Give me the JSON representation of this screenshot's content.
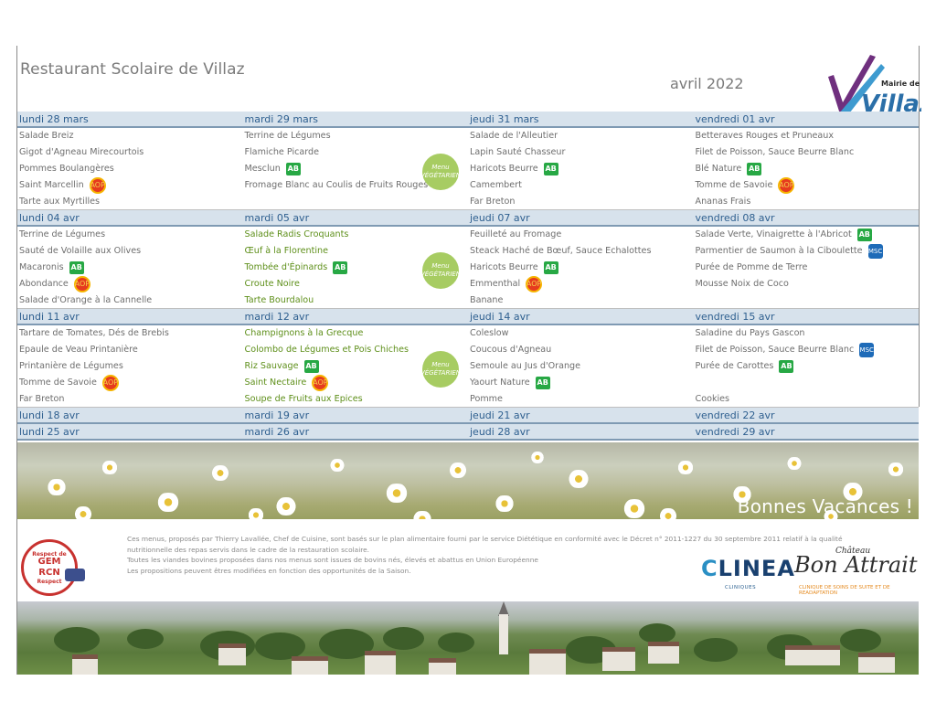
{
  "header": {
    "title": "Restaurant Scolaire de Villaz",
    "month": "avril 2022",
    "logo_text_1": "Mairie de",
    "logo_text_2": "Villaz"
  },
  "colors": {
    "accent": "#2e5f8f",
    "header_bg": "#d7e2ec",
    "veg_text": "#5e8f1a",
    "ab_green": "#27a844",
    "aop_red": "#e63b1f",
    "msc_blue": "#1e6bb8"
  },
  "badge_labels": {
    "ab": "AB",
    "aop": "AOP",
    "msc": "MSC"
  },
  "weeks": [
    {
      "days": [
        {
          "label": "lundi 28 mars",
          "dishes": [
            {
              "text": "Salade Breiz"
            },
            {
              "text": "Gigot d'Agneau Mirecourtois"
            },
            {
              "text": "Pommes Boulangères"
            },
            {
              "text": "Saint Marcellin",
              "badge": "aop"
            },
            {
              "text": "Tarte aux Myrtilles"
            }
          ]
        },
        {
          "label": "mardi 29 mars",
          "veg": true,
          "dishes": [
            {
              "text": "Terrine de Légumes"
            },
            {
              "text": "Flamiche Picarde"
            },
            {
              "text": "Mesclun",
              "badge": "ab"
            },
            {
              "text": "Fromage Blanc au Coulis de Fruits Rouges"
            },
            {
              "text": ""
            }
          ]
        },
        {
          "label": "jeudi 31 mars",
          "dishes": [
            {
              "text": "Salade de l'Alleutier"
            },
            {
              "text": "Lapin Sauté Chasseur"
            },
            {
              "text": " Haricots Beurre",
              "badge": "ab"
            },
            {
              "text": "Camembert"
            },
            {
              "text": "Far Breton"
            }
          ]
        },
        {
          "label": "vendredi 01 avr",
          "dishes": [
            {
              "text": "Betteraves Rouges et Pruneaux"
            },
            {
              "text": "Filet de Poisson, Sauce Beurre Blanc"
            },
            {
              "text": "Blé Nature",
              "badge": "ab"
            },
            {
              "text": "Tomme de Savoie",
              "badge": "aop"
            },
            {
              "text": "Ananas Frais"
            }
          ]
        }
      ]
    },
    {
      "days": [
        {
          "label": "lundi 04 avr",
          "dishes": [
            {
              "text": "Terrine de Légumes"
            },
            {
              "text": "Sauté de Volaille aux Olives"
            },
            {
              "text": "Macaronis",
              "badge": "ab"
            },
            {
              "text": "Abondance",
              "badge": "aop"
            },
            {
              "text": "Salade d'Orange à la Cannelle"
            }
          ]
        },
        {
          "label": "mardi 05 avr",
          "veg": true,
          "vegText": true,
          "dishes": [
            {
              "text": "Salade Radis Croquants"
            },
            {
              "text": "Œuf à la Florentine"
            },
            {
              "text": "Tombée d'Épinards",
              "badge": "ab"
            },
            {
              "text": "Croute Noire"
            },
            {
              "text": "Tarte Bourdalou"
            }
          ]
        },
        {
          "label": "jeudi 07 avr",
          "dishes": [
            {
              "text": "Feuilleté au Fromage"
            },
            {
              "text": "Steack Haché de Bœuf, Sauce Echalottes"
            },
            {
              "text": " Haricots Beurre",
              "badge": "ab"
            },
            {
              "text": "Emmenthal",
              "badge": "aop"
            },
            {
              "text": "Banane"
            }
          ]
        },
        {
          "label": "vendredi 08 avr",
          "dishes": [
            {
              "text": "Salade Verte, Vinaigrette à l'Abricot",
              "badge": "ab"
            },
            {
              "text": "Parmentier de Saumon à la Ciboulette",
              "badge": "msc"
            },
            {
              "text": "Purée de Pomme de Terre"
            },
            {
              "text": "Mousse Noix de Coco"
            },
            {
              "text": ""
            }
          ]
        }
      ]
    },
    {
      "days": [
        {
          "label": "lundi 11 avr",
          "dishes": [
            {
              "text": "Tartare de Tomates, Dés de Brebis"
            },
            {
              "text": "Epaule de Veau Printanière"
            },
            {
              "text": "Printanière de Légumes"
            },
            {
              "text": "Tomme de Savoie",
              "badge": "aop"
            },
            {
              "text": "Far Breton"
            }
          ]
        },
        {
          "label": "mardi 12 avr",
          "veg": true,
          "vegText": true,
          "dishes": [
            {
              "text": "Champignons à la Grecque"
            },
            {
              "text": "Colombo de Légumes et Pois Chiches"
            },
            {
              "text": "Riz Sauvage",
              "badge": "ab"
            },
            {
              "text": "Saint Nectaire",
              "badge": "aop"
            },
            {
              "text": "Soupe de Fruits aux Epices"
            }
          ]
        },
        {
          "label": "jeudi 14 avr",
          "dishes": [
            {
              "text": "Coleslow"
            },
            {
              "text": "Coucous d'Agneau"
            },
            {
              "text": "Semoule au Jus d'Orange"
            },
            {
              "text": "Yaourt Nature",
              "badge": "ab"
            },
            {
              "text": "Pomme"
            }
          ]
        },
        {
          "label": "vendredi 15 avr",
          "dishes": [
            {
              "text": "Saladine du Pays Gascon"
            },
            {
              "text": "Filet de Poisson, Sauce Beurre Blanc",
              "badge": "msc"
            },
            {
              "text": "Purée de Carottes",
              "badge": "ab"
            },
            {
              "text": ""
            },
            {
              "text": "Cookies"
            }
          ]
        }
      ]
    }
  ],
  "empty_weeks": [
    [
      "lundi 18 avr",
      "mardi 19 avr",
      "jeudi 21 avr",
      "vendredi 22 avr"
    ],
    [
      "lundi 25 avr",
      "mardi 26 avr",
      "jeudi 28 avr",
      "vendredi 29 avr"
    ]
  ],
  "veg_stamp": {
    "line1": "Menu",
    "line2": "VÉGÉTARIEN"
  },
  "banner": {
    "text": "Bonnes Vacances !"
  },
  "footer": {
    "lines": [
      "Ces menus, proposés par Thierry Lavallée, Chef de Cuisine, sont basés sur le plan alimentaire fourni par le service Diététique en conformité avec le Décret n° 2011-1227 du 30 septembre 2011 relatif à la qualité",
      "nutritionnelle des repas servis dans le cadre de la restauration scolaire.",
      "Toutes les viandes bovines proposées dans nos menus sont issues de bovins nés, élevés et abattus en Union Européenne",
      "Les propositions peuvent êtres modifiées en fonction des opportunités de la Saison."
    ],
    "gem_top": "Respect de",
    "gem_main": "GEM",
    "gem_main2": "RCN",
    "gem_bottom": "Respect",
    "clinea_c": "C",
    "clinea_rest": "LINEA",
    "clinea_sub": "CLINIQUES",
    "chateau_small": "Château",
    "chateau_main": "Bon Attrait",
    "chateau_sub": "CLINIQUE DE SOINS DE SUITE ET DE READAPTATION"
  }
}
